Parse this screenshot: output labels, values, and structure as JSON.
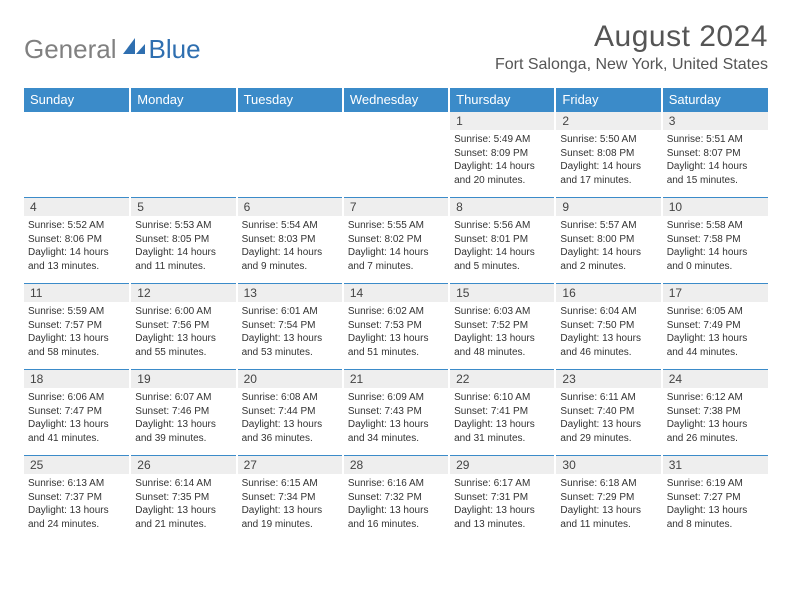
{
  "logo": {
    "gray": "General",
    "blue": "Blue"
  },
  "title": "August 2024",
  "location": "Fort Salonga, New York, United States",
  "colors": {
    "header_bg": "#3b8bc9",
    "header_fg": "#ffffff",
    "daynum_bg": "#eeeeee",
    "cell_border": "#3b8bc9",
    "logo_gray": "#808080",
    "logo_blue": "#2f6fb0",
    "text": "#333333",
    "title_color": "#555555"
  },
  "weekdays": [
    "Sunday",
    "Monday",
    "Tuesday",
    "Wednesday",
    "Thursday",
    "Friday",
    "Saturday"
  ],
  "weeks": [
    [
      null,
      null,
      null,
      null,
      {
        "n": "1",
        "sr": "Sunrise: 5:49 AM",
        "ss": "Sunset: 8:09 PM",
        "d1": "Daylight: 14 hours",
        "d2": "and 20 minutes."
      },
      {
        "n": "2",
        "sr": "Sunrise: 5:50 AM",
        "ss": "Sunset: 8:08 PM",
        "d1": "Daylight: 14 hours",
        "d2": "and 17 minutes."
      },
      {
        "n": "3",
        "sr": "Sunrise: 5:51 AM",
        "ss": "Sunset: 8:07 PM",
        "d1": "Daylight: 14 hours",
        "d2": "and 15 minutes."
      }
    ],
    [
      {
        "n": "4",
        "sr": "Sunrise: 5:52 AM",
        "ss": "Sunset: 8:06 PM",
        "d1": "Daylight: 14 hours",
        "d2": "and 13 minutes."
      },
      {
        "n": "5",
        "sr": "Sunrise: 5:53 AM",
        "ss": "Sunset: 8:05 PM",
        "d1": "Daylight: 14 hours",
        "d2": "and 11 minutes."
      },
      {
        "n": "6",
        "sr": "Sunrise: 5:54 AM",
        "ss": "Sunset: 8:03 PM",
        "d1": "Daylight: 14 hours",
        "d2": "and 9 minutes."
      },
      {
        "n": "7",
        "sr": "Sunrise: 5:55 AM",
        "ss": "Sunset: 8:02 PM",
        "d1": "Daylight: 14 hours",
        "d2": "and 7 minutes."
      },
      {
        "n": "8",
        "sr": "Sunrise: 5:56 AM",
        "ss": "Sunset: 8:01 PM",
        "d1": "Daylight: 14 hours",
        "d2": "and 5 minutes."
      },
      {
        "n": "9",
        "sr": "Sunrise: 5:57 AM",
        "ss": "Sunset: 8:00 PM",
        "d1": "Daylight: 14 hours",
        "d2": "and 2 minutes."
      },
      {
        "n": "10",
        "sr": "Sunrise: 5:58 AM",
        "ss": "Sunset: 7:58 PM",
        "d1": "Daylight: 14 hours",
        "d2": "and 0 minutes."
      }
    ],
    [
      {
        "n": "11",
        "sr": "Sunrise: 5:59 AM",
        "ss": "Sunset: 7:57 PM",
        "d1": "Daylight: 13 hours",
        "d2": "and 58 minutes."
      },
      {
        "n": "12",
        "sr": "Sunrise: 6:00 AM",
        "ss": "Sunset: 7:56 PM",
        "d1": "Daylight: 13 hours",
        "d2": "and 55 minutes."
      },
      {
        "n": "13",
        "sr": "Sunrise: 6:01 AM",
        "ss": "Sunset: 7:54 PM",
        "d1": "Daylight: 13 hours",
        "d2": "and 53 minutes."
      },
      {
        "n": "14",
        "sr": "Sunrise: 6:02 AM",
        "ss": "Sunset: 7:53 PM",
        "d1": "Daylight: 13 hours",
        "d2": "and 51 minutes."
      },
      {
        "n": "15",
        "sr": "Sunrise: 6:03 AM",
        "ss": "Sunset: 7:52 PM",
        "d1": "Daylight: 13 hours",
        "d2": "and 48 minutes."
      },
      {
        "n": "16",
        "sr": "Sunrise: 6:04 AM",
        "ss": "Sunset: 7:50 PM",
        "d1": "Daylight: 13 hours",
        "d2": "and 46 minutes."
      },
      {
        "n": "17",
        "sr": "Sunrise: 6:05 AM",
        "ss": "Sunset: 7:49 PM",
        "d1": "Daylight: 13 hours",
        "d2": "and 44 minutes."
      }
    ],
    [
      {
        "n": "18",
        "sr": "Sunrise: 6:06 AM",
        "ss": "Sunset: 7:47 PM",
        "d1": "Daylight: 13 hours",
        "d2": "and 41 minutes."
      },
      {
        "n": "19",
        "sr": "Sunrise: 6:07 AM",
        "ss": "Sunset: 7:46 PM",
        "d1": "Daylight: 13 hours",
        "d2": "and 39 minutes."
      },
      {
        "n": "20",
        "sr": "Sunrise: 6:08 AM",
        "ss": "Sunset: 7:44 PM",
        "d1": "Daylight: 13 hours",
        "d2": "and 36 minutes."
      },
      {
        "n": "21",
        "sr": "Sunrise: 6:09 AM",
        "ss": "Sunset: 7:43 PM",
        "d1": "Daylight: 13 hours",
        "d2": "and 34 minutes."
      },
      {
        "n": "22",
        "sr": "Sunrise: 6:10 AM",
        "ss": "Sunset: 7:41 PM",
        "d1": "Daylight: 13 hours",
        "d2": "and 31 minutes."
      },
      {
        "n": "23",
        "sr": "Sunrise: 6:11 AM",
        "ss": "Sunset: 7:40 PM",
        "d1": "Daylight: 13 hours",
        "d2": "and 29 minutes."
      },
      {
        "n": "24",
        "sr": "Sunrise: 6:12 AM",
        "ss": "Sunset: 7:38 PM",
        "d1": "Daylight: 13 hours",
        "d2": "and 26 minutes."
      }
    ],
    [
      {
        "n": "25",
        "sr": "Sunrise: 6:13 AM",
        "ss": "Sunset: 7:37 PM",
        "d1": "Daylight: 13 hours",
        "d2": "and 24 minutes."
      },
      {
        "n": "26",
        "sr": "Sunrise: 6:14 AM",
        "ss": "Sunset: 7:35 PM",
        "d1": "Daylight: 13 hours",
        "d2": "and 21 minutes."
      },
      {
        "n": "27",
        "sr": "Sunrise: 6:15 AM",
        "ss": "Sunset: 7:34 PM",
        "d1": "Daylight: 13 hours",
        "d2": "and 19 minutes."
      },
      {
        "n": "28",
        "sr": "Sunrise: 6:16 AM",
        "ss": "Sunset: 7:32 PM",
        "d1": "Daylight: 13 hours",
        "d2": "and 16 minutes."
      },
      {
        "n": "29",
        "sr": "Sunrise: 6:17 AM",
        "ss": "Sunset: 7:31 PM",
        "d1": "Daylight: 13 hours",
        "d2": "and 13 minutes."
      },
      {
        "n": "30",
        "sr": "Sunrise: 6:18 AM",
        "ss": "Sunset: 7:29 PM",
        "d1": "Daylight: 13 hours",
        "d2": "and 11 minutes."
      },
      {
        "n": "31",
        "sr": "Sunrise: 6:19 AM",
        "ss": "Sunset: 7:27 PM",
        "d1": "Daylight: 13 hours",
        "d2": "and 8 minutes."
      }
    ]
  ]
}
